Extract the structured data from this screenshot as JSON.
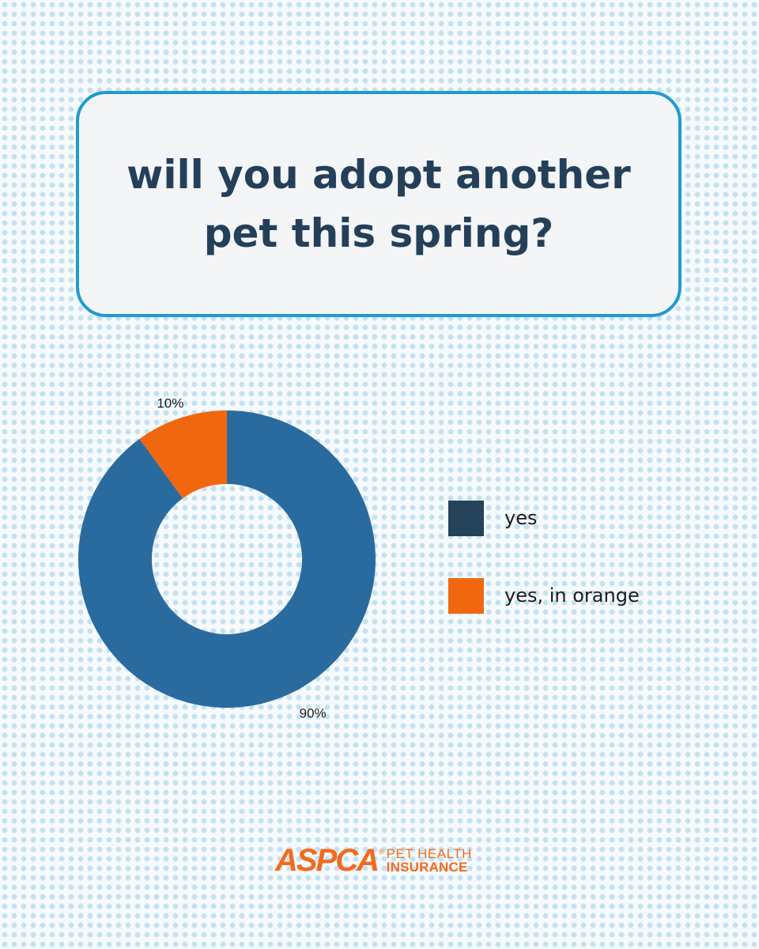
{
  "title": "will you adopt another pet this spring?",
  "chart_data": {
    "type": "pie",
    "donut": true,
    "start": "12 o'clock, clockwise",
    "slices": [
      {
        "label": "yes",
        "value": 90,
        "display": "90%",
        "color": "#2a6b9f"
      },
      {
        "label": "yes, in orange",
        "value": 10,
        "display": "10%",
        "color": "#f1670f"
      }
    ]
  },
  "legend": {
    "placement": "right",
    "items": [
      {
        "label": "yes",
        "color": "#24425a"
      },
      {
        "label": "yes, in orange",
        "color": "#f1670f"
      }
    ]
  },
  "logo": {
    "brand": "ASPCA",
    "registered": "®",
    "line1": "PET HEALTH",
    "line2": "INSURANCE",
    "color": "#f26b1d"
  }
}
